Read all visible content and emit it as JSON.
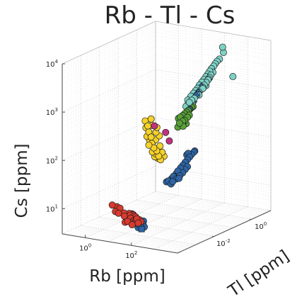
{
  "chart_data": {
    "type": "scatter3d",
    "title": "Rb - Tl - Cs",
    "xlabel": "Rb [ppm]",
    "ylabel": "Tl [ppm]",
    "zlabel": "Cs [ppm]",
    "scale": {
      "x": "log",
      "y": "log",
      "z": "log"
    },
    "xlim": [
      0.1,
      10000
    ],
    "ylim": [
      0.0001,
      10
    ],
    "zlim": [
      3,
      10000
    ],
    "grid": true,
    "legend": "none",
    "x_ticks": [
      {
        "base": "10",
        "exp": "0",
        "value": 1
      },
      {
        "base": "10",
        "exp": "2",
        "value": 100
      }
    ],
    "y_ticks": [
      {
        "base": "10",
        "exp": "-2",
        "value": 0.01
      },
      {
        "base": "10",
        "exp": "0",
        "value": 1
      }
    ],
    "z_ticks": [
      {
        "base": "10",
        "exp": "1",
        "value": 10
      },
      {
        "base": "10",
        "exp": "2",
        "value": 100
      },
      {
        "base": "10",
        "exp": "3",
        "value": 1000
      },
      {
        "base": "10",
        "exp": "4",
        "value": 10000
      }
    ],
    "series": [
      {
        "color": "#d93a2e",
        "marker": "circle",
        "points": [
          [
            4.0,
            0.0005,
            12
          ],
          [
            5.5,
            0.0006,
            11
          ],
          [
            7.5,
            0.0006,
            10.5
          ],
          [
            5.5,
            0.0005,
            9
          ],
          [
            9,
            0.0004,
            9
          ],
          [
            13,
            0.0005,
            9
          ],
          [
            19,
            0.0006,
            8.8
          ],
          [
            28,
            0.0006,
            8.6
          ],
          [
            36,
            0.0005,
            8.5
          ],
          [
            42,
            0.0005,
            8.2
          ],
          [
            24,
            0.0005,
            8.5
          ],
          [
            16,
            0.0004,
            8.2
          ],
          [
            30,
            0.0004,
            7.8
          ],
          [
            42,
            0.0004,
            7.2
          ],
          [
            48,
            0.0004,
            6.8
          ],
          [
            36,
            0.0004,
            6.6
          ],
          [
            28,
            0.0003,
            7.0
          ],
          [
            52,
            0.0004,
            7.6
          ],
          [
            56,
            0.0004,
            8.0
          ],
          [
            60,
            0.0005,
            7.4
          ],
          [
            22,
            0.0003,
            6.6
          ],
          [
            64,
            0.0004,
            6.6
          ],
          [
            44,
            0.0003,
            6.2
          ],
          [
            70,
            0.0005,
            6.8
          ]
        ]
      },
      {
        "color": "#2d65a5",
        "marker": "circle",
        "points": [
          [
            18,
            0.0009,
            8.0
          ],
          [
            26,
            0.0008,
            7.0
          ],
          [
            38,
            0.0008,
            6.4
          ],
          [
            50,
            0.0007,
            5.8
          ],
          [
            34,
            0.0007,
            5.6
          ],
          [
            58,
            0.0006,
            5.2
          ],
          [
            46,
            0.0006,
            4.8
          ],
          [
            66,
            0.0007,
            5.6
          ],
          [
            75,
            0.0007,
            5.0
          ],
          [
            30,
            0.0008,
            6.0
          ],
          [
            62,
            0.0008,
            6.4
          ]
        ]
      },
      {
        "color": "#2d65a5",
        "marker": "square",
        "points": [
          [
            40,
            0.0007,
            6.0
          ],
          [
            55,
            0.0006,
            5.6
          ],
          [
            65,
            0.0006,
            4.6
          ]
        ]
      },
      {
        "color": "#2d65a5",
        "marker": "circle",
        "points": [
          [
            140,
            0.005,
            32
          ],
          [
            170,
            0.005,
            34
          ],
          [
            200,
            0.006,
            37
          ],
          [
            240,
            0.006,
            42
          ],
          [
            280,
            0.007,
            47
          ],
          [
            330,
            0.007,
            54
          ],
          [
            390,
            0.008,
            62
          ],
          [
            450,
            0.009,
            70
          ],
          [
            520,
            0.01,
            80
          ],
          [
            600,
            0.011,
            90
          ],
          [
            690,
            0.012,
            102
          ],
          [
            780,
            0.013,
            114
          ],
          [
            880,
            0.015,
            126
          ],
          [
            260,
            0.005,
            34
          ],
          [
            320,
            0.006,
            38
          ],
          [
            400,
            0.007,
            44
          ],
          [
            480,
            0.008,
            50
          ],
          [
            560,
            0.009,
            58
          ],
          [
            650,
            0.01,
            66
          ],
          [
            220,
            0.005,
            30
          ],
          [
            920,
            0.016,
            132
          ],
          [
            520,
            0.012,
            110
          ],
          [
            600,
            0.012,
            120
          ],
          [
            420,
            0.006,
            40
          ]
        ]
      },
      {
        "color": "#f5d22a",
        "marker": "circle",
        "points": [
          [
            20,
            0.004,
            520
          ],
          [
            26,
            0.004,
            420
          ],
          [
            18,
            0.005,
            360
          ],
          [
            24,
            0.005,
            300
          ],
          [
            30,
            0.005,
            240
          ],
          [
            22,
            0.006,
            200
          ],
          [
            28,
            0.006,
            170
          ],
          [
            34,
            0.006,
            140
          ],
          [
            40,
            0.007,
            120
          ],
          [
            26,
            0.007,
            110
          ],
          [
            34,
            0.008,
            100
          ],
          [
            44,
            0.008,
            92
          ],
          [
            30,
            0.008,
            86
          ],
          [
            38,
            0.009,
            80
          ],
          [
            48,
            0.009,
            76
          ],
          [
            24,
            0.005,
            160
          ],
          [
            20,
            0.005,
            240
          ],
          [
            36,
            0.007,
            200
          ],
          [
            50,
            0.008,
            150
          ],
          [
            42,
            0.006,
            300
          ],
          [
            32,
            0.005,
            420
          ],
          [
            46,
            0.006,
            380
          ],
          [
            56,
            0.009,
            110
          ],
          [
            62,
            0.01,
            90
          ],
          [
            36,
            0.004,
            600
          ],
          [
            52,
            0.007,
            250
          ]
        ]
      },
      {
        "color": "#c2317d",
        "marker": "circle",
        "points": [
          [
            42,
            0.005,
            420
          ],
          [
            88,
            0.008,
            300
          ],
          [
            115,
            0.009,
            200
          ]
        ]
      },
      {
        "color": "#57a036",
        "marker": "circle",
        "points": [
          [
            150,
            0.02,
            520
          ],
          [
            180,
            0.02,
            560
          ],
          [
            210,
            0.022,
            600
          ],
          [
            240,
            0.024,
            650
          ],
          [
            270,
            0.026,
            700
          ],
          [
            300,
            0.028,
            750
          ],
          [
            340,
            0.03,
            800
          ],
          [
            380,
            0.032,
            860
          ],
          [
            420,
            0.034,
            900
          ],
          [
            250,
            0.018,
            480
          ],
          [
            200,
            0.016,
            440
          ],
          [
            320,
            0.024,
            560
          ],
          [
            280,
            0.02,
            500
          ],
          [
            360,
            0.026,
            620
          ],
          [
            230,
            0.02,
            400
          ],
          [
            170,
            0.016,
            360
          ],
          [
            300,
            0.022,
            420
          ],
          [
            260,
            0.018,
            380
          ]
        ]
      },
      {
        "color": "#7dd2c6",
        "marker": "circle",
        "points": [
          [
            300,
            0.04,
            1400
          ],
          [
            350,
            0.045,
            1600
          ],
          [
            400,
            0.05,
            1800
          ],
          [
            450,
            0.055,
            2000
          ],
          [
            500,
            0.06,
            2300
          ],
          [
            560,
            0.07,
            2600
          ],
          [
            620,
            0.08,
            2900
          ],
          [
            690,
            0.09,
            3300
          ],
          [
            770,
            0.1,
            3700
          ],
          [
            860,
            0.11,
            4200
          ],
          [
            950,
            0.12,
            4700
          ],
          [
            1050,
            0.14,
            5200
          ],
          [
            1150,
            0.15,
            5800
          ],
          [
            1250,
            0.17,
            6400
          ],
          [
            1400,
            0.2,
            7000
          ],
          [
            420,
            0.04,
            1300
          ],
          [
            480,
            0.046,
            1500
          ],
          [
            540,
            0.052,
            1700
          ],
          [
            600,
            0.058,
            1900
          ],
          [
            660,
            0.064,
            2100
          ],
          [
            720,
            0.07,
            2300
          ],
          [
            800,
            0.078,
            2600
          ],
          [
            880,
            0.086,
            2900
          ],
          [
            960,
            0.095,
            3200
          ],
          [
            1040,
            0.1,
            3600
          ],
          [
            360,
            0.035,
            1200
          ],
          [
            320,
            0.03,
            1100
          ],
          [
            280,
            0.03,
            1000
          ],
          [
            240,
            0.028,
            900
          ],
          [
            260,
            0.032,
            1200
          ],
          [
            380,
            0.036,
            1000
          ],
          [
            560,
            0.05,
            1500
          ],
          [
            760,
            0.08,
            2200
          ],
          [
            1100,
            0.12,
            4000
          ],
          [
            1500,
            0.3,
            9000
          ],
          [
            2200,
            0.6,
            2600
          ],
          [
            1600,
            0.25,
            12000
          ],
          [
            700,
            0.06,
            2000
          ],
          [
            900,
            0.09,
            3000
          ]
        ]
      },
      {
        "color": "#2d65a5",
        "marker": "diamond",
        "points": [
          [
            340,
            0.03,
            800
          ],
          [
            400,
            0.04,
            1100
          ],
          [
            460,
            0.045,
            1500
          ],
          [
            520,
            0.05,
            1700
          ],
          [
            600,
            0.06,
            2200
          ]
        ]
      }
    ]
  }
}
